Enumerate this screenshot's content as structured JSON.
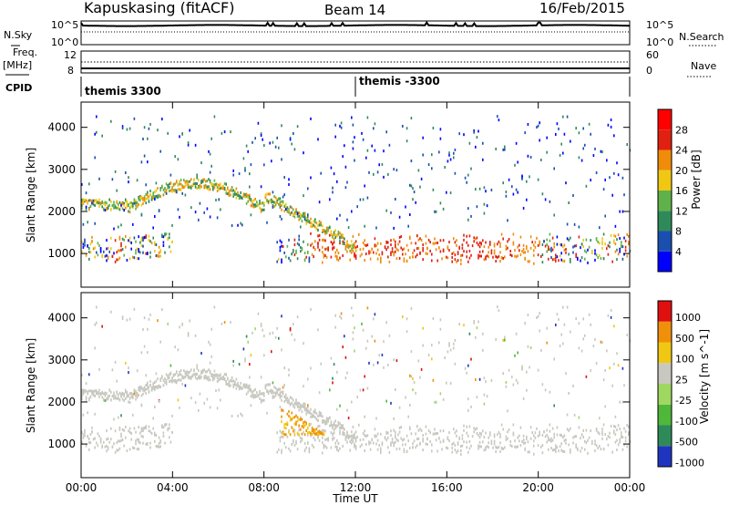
{
  "header": {
    "station": "Kapuskasing (fitACF)",
    "beam": "Beam 14",
    "date": "16/Feb/2015"
  },
  "left_labels": {
    "nsky": "N.Sky",
    "freq_line1": "Freq.",
    "freq_line2": "[MHz]",
    "cpid": "CPID"
  },
  "right_labels": {
    "nsearch": "N.Search",
    "nave": "Nave"
  },
  "chart_data": [
    {
      "type": "line",
      "name": "noise",
      "ytick_labels_left": [
        "10^5",
        "10^0"
      ],
      "ytick_labels_right": [
        "10^5",
        "10^0"
      ]
    },
    {
      "type": "line",
      "name": "frequency",
      "ytick_labels_left": [
        "12",
        "8"
      ],
      "ytick_labels_right": [
        "60",
        "0"
      ]
    },
    {
      "type": "table",
      "name": "cpid",
      "segments": [
        {
          "start_hour": 0,
          "label": "themis 3300"
        },
        {
          "start_hour": 12,
          "label": "themis -3300"
        }
      ]
    },
    {
      "type": "heatmap",
      "name": "power",
      "ylabel": "Slant Range [km]",
      "yticks": [
        1000,
        2000,
        3000,
        4000
      ],
      "ylim": [
        200,
        4600
      ],
      "xlim": [
        0,
        24
      ],
      "colorbar": {
        "label": "Power [dB]",
        "ticks": [
          "4",
          "8",
          "12",
          "16",
          "20",
          "24",
          "28"
        ],
        "colors": [
          "#0000ff",
          "#1a4fb0",
          "#2f8a5a",
          "#5fb24a",
          "#f0c814",
          "#f08c0a",
          "#e02010",
          "#ff0000"
        ]
      }
    },
    {
      "type": "heatmap",
      "name": "velocity",
      "ylabel": "Slant Range [km]",
      "yticks": [
        1000,
        2000,
        3000,
        4000
      ],
      "ylim": [
        200,
        4600
      ],
      "xlim": [
        0,
        24
      ],
      "colorbar": {
        "label": "Velocity [m s^-1]",
        "ticks": [
          "1000",
          "500",
          "100",
          "25",
          "-25",
          "-100",
          "-500",
          "-1000"
        ],
        "colors": [
          "#1f35c0",
          "#2f8a5a",
          "#4fb83a",
          "#9fd860",
          "#c8c8c0",
          "#f0c814",
          "#f0900a",
          "#e01010"
        ]
      },
      "ground_scatter_color": "#c8c8c0"
    }
  ],
  "xaxis": {
    "ticks": [
      "00:00",
      "04:00",
      "08:00",
      "12:00",
      "16:00",
      "20:00",
      "00:00"
    ],
    "label": "Time UT"
  }
}
